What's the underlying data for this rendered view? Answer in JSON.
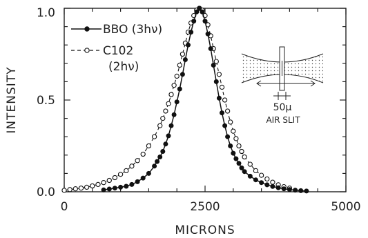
{
  "chart_data": {
    "type": "line",
    "xlabel": "MICRONS",
    "ylabel": "INTENSITY",
    "xlim": [
      0,
      5000
    ],
    "ylim": [
      0,
      1.0
    ],
    "xticks": [
      "0",
      "2500",
      "5000"
    ],
    "yticks": [
      "0.0",
      "0.5",
      "1.0"
    ],
    "grid": false,
    "legend_position": "top-left",
    "series": [
      {
        "name": "BBO (3hν)",
        "marker": "filled-circle",
        "line": "solid",
        "color": "#111111",
        "x": [
          700,
          800,
          900,
          1000,
          1100,
          1200,
          1300,
          1400,
          1500,
          1600,
          1650,
          1700,
          1750,
          1800,
          1850,
          1900,
          1950,
          2000,
          2050,
          2100,
          2150,
          2200,
          2250,
          2300,
          2350,
          2400,
          2450,
          2500,
          2550,
          2600,
          2650,
          2700,
          2750,
          2800,
          2850,
          2900,
          2950,
          3000,
          3050,
          3100,
          3150,
          3200,
          3300,
          3400,
          3500,
          3600,
          3700,
          3800,
          3900,
          4000,
          4100,
          4200,
          4300
        ],
        "y": [
          0.01,
          0.015,
          0.02,
          0.025,
          0.03,
          0.04,
          0.055,
          0.075,
          0.1,
          0.14,
          0.165,
          0.19,
          0.22,
          0.26,
          0.305,
          0.36,
          0.42,
          0.49,
          0.56,
          0.64,
          0.72,
          0.8,
          0.87,
          0.93,
          0.98,
          1.0,
          0.98,
          0.93,
          0.86,
          0.78,
          0.69,
          0.6,
          0.51,
          0.43,
          0.36,
          0.3,
          0.25,
          0.21,
          0.18,
          0.155,
          0.13,
          0.11,
          0.085,
          0.065,
          0.05,
          0.038,
          0.029,
          0.022,
          0.016,
          0.012,
          0.009,
          0.006,
          0.004
        ]
      },
      {
        "name": "C102 (2hν)",
        "marker": "open-circle",
        "line": "dashed",
        "color": "#111111",
        "x": [
          0,
          100,
          200,
          300,
          400,
          500,
          600,
          700,
          800,
          900,
          1000,
          1100,
          1200,
          1300,
          1400,
          1500,
          1600,
          1700,
          1750,
          1800,
          1850,
          1900,
          1950,
          2000,
          2050,
          2100,
          2150,
          2200,
          2250,
          2300,
          2350,
          2400,
          2450,
          2500,
          2550,
          2600,
          2650,
          2700,
          2750,
          2800,
          2850,
          2900,
          2950,
          3000,
          3050,
          3100,
          3150,
          3200,
          3300,
          3400,
          3500,
          3600,
          3700,
          3800,
          3900,
          4000
        ],
        "y": [
          0.008,
          0.012,
          0.016,
          0.02,
          0.025,
          0.032,
          0.04,
          0.05,
          0.062,
          0.077,
          0.095,
          0.115,
          0.14,
          0.17,
          0.205,
          0.25,
          0.3,
          0.36,
          0.4,
          0.44,
          0.48,
          0.53,
          0.58,
          0.63,
          0.69,
          0.75,
          0.81,
          0.87,
          0.92,
          0.96,
          0.99,
          1.0,
          0.99,
          0.96,
          0.91,
          0.85,
          0.78,
          0.71,
          0.64,
          0.57,
          0.5,
          0.44,
          0.38,
          0.33,
          0.29,
          0.25,
          0.22,
          0.19,
          0.15,
          0.115,
          0.09,
          0.07,
          0.052,
          0.038,
          0.028,
          0.02
        ]
      }
    ],
    "legend": {
      "bbo_label": "BBO (3hν)",
      "c102_label_line1": "C102",
      "c102_label_line2": "(2hν)"
    },
    "inset": {
      "slit_width_label": "50μ",
      "slit_caption": "AIR SLIT"
    }
  }
}
